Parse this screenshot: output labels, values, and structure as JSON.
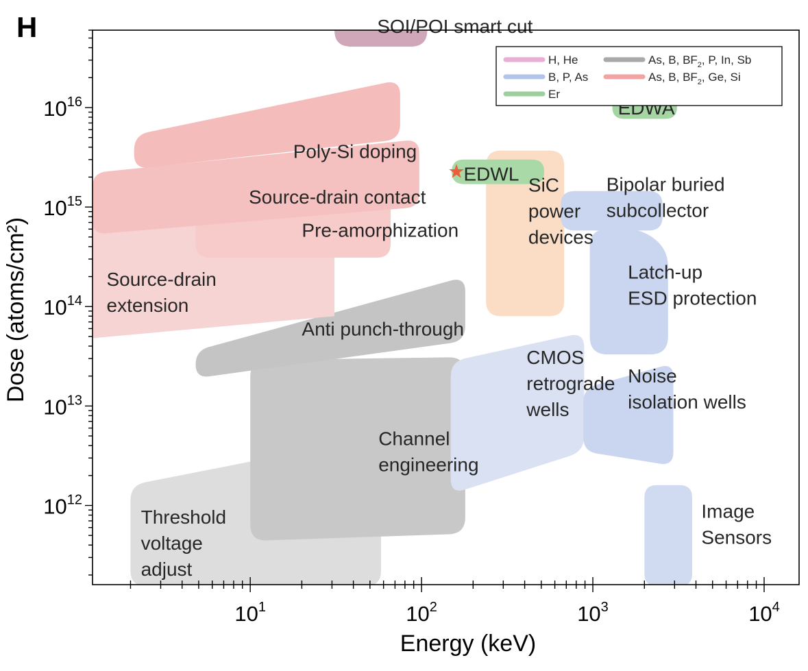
{
  "panel_label": "H",
  "chart_data": {
    "type": "area",
    "title": "",
    "xlabel": "Energy (keV)",
    "ylabel": "Dose (atoms/cm²)",
    "x_scale": "log",
    "y_scale": "log",
    "xlim": [
      1.2,
      16000
    ],
    "ylim": [
      160000000000.0,
      6e+16
    ],
    "x_ticks": [
      10,
      100,
      1000,
      10000
    ],
    "x_tick_base": "10",
    "x_tick_exponents": [
      "1",
      "2",
      "3",
      "4"
    ],
    "y_ticks": [
      1000000000000.0,
      10000000000000.0,
      100000000000000.0,
      1000000000000000.0,
      1e+16
    ],
    "y_tick_base": "10",
    "y_tick_exponents": [
      "12",
      "13",
      "14",
      "15",
      "16"
    ],
    "grid": false,
    "legend_position": "top-right",
    "legend": [
      {
        "key": "h_he",
        "segments": [
          {
            "text": "H, He"
          }
        ],
        "color": "#e9aed5"
      },
      {
        "key": "as_b_bf2_p_in_sb",
        "segments": [
          {
            "text": "As, B, BF"
          },
          {
            "text": "2",
            "sub": true
          },
          {
            "text": ", P, In, Sb"
          }
        ],
        "color": "#a9a9a9"
      },
      {
        "key": "b_p_as",
        "segments": [
          {
            "text": "B, P, As"
          }
        ],
        "color": "#b2c5e8"
      },
      {
        "key": "as_b_bf2_ge_si",
        "segments": [
          {
            "text": "As, B, BF"
          },
          {
            "text": "2",
            "sub": true
          },
          {
            "text": ", Ge, Si"
          }
        ],
        "color": "#f2a3a3"
      },
      {
        "key": "er",
        "segments": [
          {
            "text": "Er"
          }
        ],
        "color": "#9ed09d"
      }
    ],
    "regions": [
      {
        "id": "threshold-voltage-adjust",
        "lines": [
          "Threshold",
          "voltage",
          "adjust"
        ],
        "color": "#dddddd",
        "opacity": 1,
        "radius": 22,
        "polygon": [
          [
            2.0,
            155000000000.0
          ],
          [
            58,
            155000000000.0
          ],
          [
            58,
            5000000000000.0
          ],
          [
            2.0,
            1600000000000.0
          ]
        ],
        "label_at": [
          2.3,
          420000000000.0
        ]
      },
      {
        "id": "channel-engineering",
        "lines": [
          "Channel",
          "engineering"
        ],
        "color": "#c8c8c8",
        "opacity": 1,
        "radius": 24,
        "polygon": [
          [
            10,
            29000000000000.0
          ],
          [
            180,
            31000000000000.0
          ],
          [
            180,
            520000000000.0
          ],
          [
            10,
            440000000000.0
          ]
        ],
        "label_at": [
          56,
          3500000000000.0
        ]
      },
      {
        "id": "anti-punch-through",
        "lines": [
          "Anti punch-through"
        ],
        "color": "#c4c4c4",
        "opacity": 1,
        "radius": 22,
        "polygon": [
          [
            4.8,
            36000000000000.0
          ],
          [
            180,
            200000000000000.0
          ],
          [
            180,
            45000000000000.0
          ],
          [
            4.8,
            19000000000000.0
          ]
        ],
        "label_at": [
          20,
          60000000000000.0
        ]
      },
      {
        "id": "source-drain-extension",
        "lines": [
          "Source-drain",
          "extension"
        ],
        "color": "#f7d4d4",
        "opacity": 1,
        "radius": 0,
        "polygon": [
          [
            1.2,
            1400000000000000.0
          ],
          [
            31,
            1400000000000000.0
          ],
          [
            31,
            80000000000000.0
          ],
          [
            1.2,
            48000000000000.0
          ]
        ],
        "label_at": [
          1.45,
          140000000000000.0
        ]
      },
      {
        "id": "pre-amorphization",
        "lines": [
          "Pre-amorphization"
        ],
        "color": "#f7cbc9",
        "opacity": 1,
        "radius": 20,
        "polygon": [
          [
            4.8,
            1400000000000000.0
          ],
          [
            66,
            1400000000000000.0
          ],
          [
            66,
            310000000000000.0
          ],
          [
            4.8,
            310000000000000.0
          ]
        ],
        "label_at": [
          20,
          590000000000000.0
        ]
      },
      {
        "id": "source-drain-contact",
        "lines": [
          "Source-drain contact"
        ],
        "color": "#f5c0c0",
        "opacity": 1,
        "radius": 20,
        "polygon": [
          [
            1.2,
            2200000000000000.0
          ],
          [
            97,
            4800000000000000.0
          ],
          [
            97,
            1000000000000000.0
          ],
          [
            1.2,
            530000000000000.0
          ]
        ],
        "label_at": [
          9.8,
          1270000000000000.0
        ]
      },
      {
        "id": "poly-si-doping",
        "lines": [
          "Poly-Si doping"
        ],
        "color": "#f5bcbc",
        "opacity": 1,
        "radius": 22,
        "polygon": [
          [
            2.1,
            5300000000000000.0
          ],
          [
            75,
            1.9e+16
          ],
          [
            75,
            4800000000000000.0
          ],
          [
            2.1,
            2400000000000000.0
          ]
        ],
        "label_at": [
          17.8,
          3650000000000000.0
        ]
      },
      {
        "id": "soi-poi-smart-cut",
        "lines": [
          "SOI/POI smart cut"
        ],
        "color": "#cfa7b9",
        "opacity": 1,
        "radius": 24,
        "polygon": [
          [
            31,
            1.12e+17
          ],
          [
            108,
            1.12e+17
          ],
          [
            108,
            4.1e+16
          ],
          [
            31,
            4.1e+16
          ]
        ],
        "label_at": [
          55,
          6.6e+16
        ]
      },
      {
        "id": "cmos-retrograde-wells",
        "lines": [
          "CMOS",
          "retrograde",
          "wells"
        ],
        "color": "#d9e1f3",
        "opacity": 1,
        "radius": 22,
        "polygon": [
          [
            148,
            28000000000000.0
          ],
          [
            890,
            55000000000000.0
          ],
          [
            890,
            3500000000000.0
          ],
          [
            148,
            1300000000000.0
          ]
        ],
        "label_at": [
          410,
          17000000000000.0
        ]
      },
      {
        "id": "sic-power-devices",
        "lines": [
          "SiC",
          "power",
          "devices"
        ],
        "color": "#fbdcc4",
        "opacity": 1,
        "radius": 22,
        "polygon": [
          [
            238,
            3700000000000000.0
          ],
          [
            680,
            3700000000000000.0
          ],
          [
            680,
            80000000000000.0
          ],
          [
            238,
            80000000000000.0
          ]
        ],
        "label_at": [
          420,
          920000000000000.0
        ]
      },
      {
        "id": "edwl",
        "lines": [
          "EDWL"
        ],
        "color": "#a9d9a6",
        "opacity": 1,
        "radius": 22,
        "polygon": [
          [
            150,
            3000000000000000.0
          ],
          [
            520,
            3000000000000000.0
          ],
          [
            520,
            1700000000000000.0
          ],
          [
            150,
            1700000000000000.0
          ]
        ],
        "label_at": [
          176,
          2160000000000000.0
        ]
      },
      {
        "id": "latch-up-esd-protection",
        "lines": [
          "Latch-up",
          "ESD protection"
        ],
        "color": "#cad6ef",
        "opacity": 1,
        "radius": 26,
        "polygon": [
          [
            960,
            600000000000000.0
          ],
          [
            1950,
            600000000000000.0
          ],
          [
            2750,
            370000000000000.0
          ],
          [
            2750,
            33000000000000.0
          ],
          [
            960,
            33000000000000.0
          ]
        ],
        "label_at": [
          1600,
          165000000000000.0
        ]
      },
      {
        "id": "bipolar-buried-subcollector",
        "lines": [
          "Bipolar buried",
          "subcollector"
        ],
        "color": "#cad6ef",
        "opacity": 1,
        "radius": 20,
        "polygon": [
          [
            650,
            1450000000000000.0
          ],
          [
            2550,
            1450000000000000.0
          ],
          [
            2550,
            580000000000000.0
          ],
          [
            650,
            580000000000000.0
          ]
        ],
        "label_at": [
          1200,
          1260000000000000.0
        ]
      },
      {
        "id": "noise-isolation-wells",
        "lines": [
          "Noise",
          "isolation wells"
        ],
        "color": "#cad6ef",
        "opacity": 1,
        "radius": 20,
        "polygon": [
          [
            880,
            15000000000000.0
          ],
          [
            2950,
            27000000000000.0
          ],
          [
            2950,
            2500000000000.0
          ],
          [
            880,
            3500000000000.0
          ]
        ],
        "label_at": [
          1600,
          15000000000000.0
        ]
      },
      {
        "id": "image-sensors",
        "lines": [
          "Image",
          "Sensors"
        ],
        "color": "#d0dbf2",
        "opacity": 1,
        "radius": 18,
        "polygon": [
          [
            2000,
            1600000000000.0
          ],
          [
            3800,
            1600000000000.0
          ],
          [
            3800,
            155000000000.0
          ],
          [
            2000,
            155000000000.0
          ]
        ],
        "label_at": [
          4300,
          650000000000.0
        ]
      },
      {
        "id": "edwa",
        "lines": [
          "EDWA"
        ],
        "color": "#a5d5a3",
        "opacity": 1,
        "radius": 20,
        "polygon": [
          [
            1300,
            1.32e+16
          ],
          [
            3100,
            1.32e+16
          ],
          [
            3100,
            7700000000000000.0
          ],
          [
            1300,
            7700000000000000.0
          ]
        ],
        "label_at": [
          1400,
          1e+16
        ]
      }
    ],
    "markers": [
      {
        "id": "edwl-star",
        "symbol": "★",
        "x": 160,
        "y": 2300000000000000.0,
        "color": "#e8603c"
      }
    ]
  }
}
